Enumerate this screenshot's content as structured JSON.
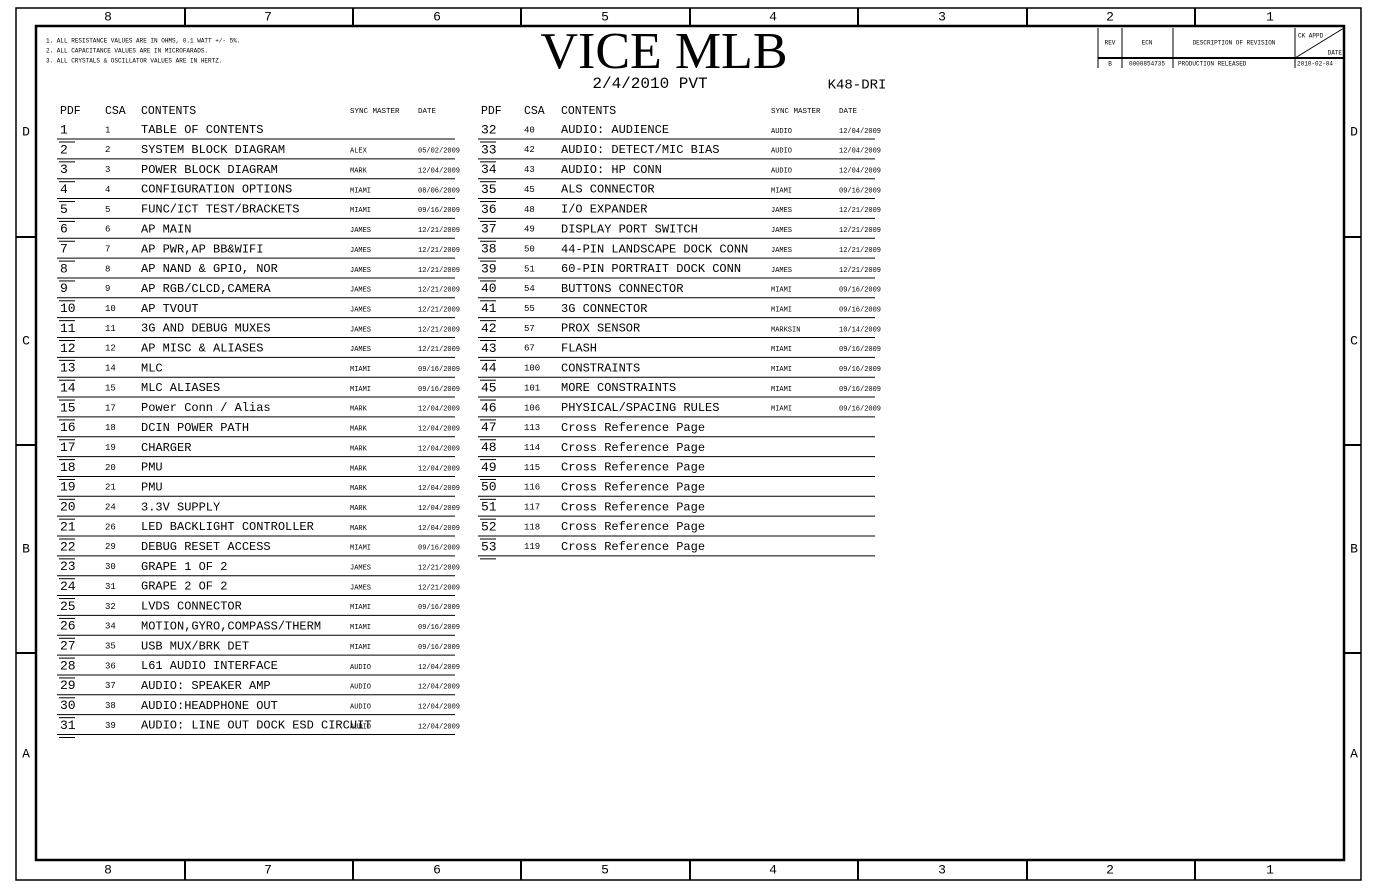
{
  "border": {
    "columns": [
      "8",
      "7",
      "6",
      "5",
      "4",
      "3",
      "2",
      "1"
    ],
    "rows": [
      "D",
      "C",
      "B",
      "A"
    ]
  },
  "notes": [
    "1. ALL RESISTANCE VALUES ARE IN OHMS, 0.1 WATT +/- 5%.",
    "2. ALL CAPACITANCE VALUES ARE IN MICROFARADS.",
    "3. ALL CRYSTALS & OSCILLATOR VALUES ARE IN HERTZ."
  ],
  "header": {
    "title": "VICE MLB",
    "subtitle": "2/4/2010 PVT",
    "board": "K48-DRI"
  },
  "revision": {
    "headers": [
      "REV",
      "ECN",
      "DESCRIPTION OF REVISION",
      "CK APPD",
      "DATE"
    ],
    "row": [
      "B",
      "0000854735",
      "PRODUCTION RELEASED",
      "2010-02-04"
    ]
  },
  "table": {
    "headers": [
      "PDF",
      "CSA",
      "CONTENTS",
      "SYNC MASTER",
      "DATE"
    ],
    "left": [
      {
        "pdf": "1",
        "csa": "1",
        "contents": "TABLE OF CONTENTS"
      },
      {
        "pdf": "2",
        "csa": "2",
        "contents": "SYSTEM BLOCK DIAGRAM",
        "sync": "ALEX",
        "date": "05/02/2009"
      },
      {
        "pdf": "3",
        "csa": "3",
        "contents": "POWER BLOCK DIAGRAM",
        "sync": "MARK",
        "date": "12/04/2009"
      },
      {
        "pdf": "4",
        "csa": "4",
        "contents": "CONFIGURATION OPTIONS",
        "sync": "MIAMI",
        "date": "08/06/2009"
      },
      {
        "pdf": "5",
        "csa": "5",
        "contents": "FUNC/ICT TEST/BRACKETS",
        "sync": "MIAMI",
        "date": "09/16/2009"
      },
      {
        "pdf": "6",
        "csa": "6",
        "contents": "AP MAIN",
        "sync": "JAMES",
        "date": "12/21/2009"
      },
      {
        "pdf": "7",
        "csa": "7",
        "contents": "AP PWR,AP BB&WIFI",
        "sync": "JAMES",
        "date": "12/21/2009"
      },
      {
        "pdf": "8",
        "csa": "8",
        "contents": "AP NAND & GPIO, NOR",
        "sync": "JAMES",
        "date": "12/21/2009"
      },
      {
        "pdf": "9",
        "csa": "9",
        "contents": "AP RGB/CLCD,CAMERA",
        "sync": "JAMES",
        "date": "12/21/2009"
      },
      {
        "pdf": "10",
        "csa": "10",
        "contents": "AP TVOUT",
        "sync": "JAMES",
        "date": "12/21/2009"
      },
      {
        "pdf": "11",
        "csa": "11",
        "contents": "3G AND DEBUG MUXES",
        "sync": "JAMES",
        "date": "12/21/2009"
      },
      {
        "pdf": "12",
        "csa": "12",
        "contents": "AP MISC & ALIASES",
        "sync": "JAMES",
        "date": "12/21/2009"
      },
      {
        "pdf": "13",
        "csa": "14",
        "contents": "MLC",
        "sync": "MIAMI",
        "date": "09/16/2009"
      },
      {
        "pdf": "14",
        "csa": "15",
        "contents": "MLC ALIASES",
        "sync": "MIAMI",
        "date": "09/16/2009"
      },
      {
        "pdf": "15",
        "csa": "17",
        "contents": "Power Conn / Alias",
        "sync": "MARK",
        "date": "12/04/2009"
      },
      {
        "pdf": "16",
        "csa": "18",
        "contents": "DCIN POWER PATH",
        "sync": "MARK",
        "date": "12/04/2009"
      },
      {
        "pdf": "17",
        "csa": "19",
        "contents": "CHARGER",
        "sync": "MARK",
        "date": "12/04/2009"
      },
      {
        "pdf": "18",
        "csa": "20",
        "contents": "PMU",
        "sync": "MARK",
        "date": "12/04/2009"
      },
      {
        "pdf": "19",
        "csa": "21",
        "contents": "PMU",
        "sync": "MARK",
        "date": "12/04/2009"
      },
      {
        "pdf": "20",
        "csa": "24",
        "contents": "3.3V SUPPLY",
        "sync": "MARK",
        "date": "12/04/2009"
      },
      {
        "pdf": "21",
        "csa": "26",
        "contents": "LED BACKLIGHT CONTROLLER",
        "sync": "MARK",
        "date": "12/04/2009"
      },
      {
        "pdf": "22",
        "csa": "29",
        "contents": "DEBUG RESET ACCESS",
        "sync": "MIAMI",
        "date": "09/16/2009"
      },
      {
        "pdf": "23",
        "csa": "30",
        "contents": "GRAPE 1 OF 2",
        "sync": "JAMES",
        "date": "12/21/2009"
      },
      {
        "pdf": "24",
        "csa": "31",
        "contents": "GRAPE 2 OF 2",
        "sync": "JAMES",
        "date": "12/21/2009"
      },
      {
        "pdf": "25",
        "csa": "32",
        "contents": "LVDS CONNECTOR",
        "sync": "MIAMI",
        "date": "09/16/2009"
      },
      {
        "pdf": "26",
        "csa": "34",
        "contents": "MOTION,GYRO,COMPASS/THERM",
        "sync": "MIAMI",
        "date": "09/16/2009"
      },
      {
        "pdf": "27",
        "csa": "35",
        "contents": "USB MUX/BRK DET",
        "sync": "MIAMI",
        "date": "09/16/2009"
      },
      {
        "pdf": "28",
        "csa": "36",
        "contents": "L61 AUDIO INTERFACE",
        "sync": "AUDIO",
        "date": "12/04/2009"
      },
      {
        "pdf": "29",
        "csa": "37",
        "contents": "AUDIO: SPEAKER AMP",
        "sync": "AUDIO",
        "date": "12/04/2009"
      },
      {
        "pdf": "30",
        "csa": "38",
        "contents": "AUDIO:HEADPHONE OUT",
        "sync": "AUDIO",
        "date": "12/04/2009"
      },
      {
        "pdf": "31",
        "csa": "39",
        "contents": "AUDIO: LINE OUT DOCK ESD CIRCUIT",
        "sync": "AUDIO",
        "date": "12/04/2009"
      }
    ],
    "right": [
      {
        "pdf": "32",
        "csa": "40",
        "contents": "AUDIO: AUDIENCE",
        "sync": "AUDIO",
        "date": "12/04/2009"
      },
      {
        "pdf": "33",
        "csa": "42",
        "contents": "AUDIO: DETECT/MIC BIAS",
        "sync": "AUDIO",
        "date": "12/04/2009"
      },
      {
        "pdf": "34",
        "csa": "43",
        "contents": "AUDIO: HP CONN",
        "sync": "AUDIO",
        "date": "12/04/2009"
      },
      {
        "pdf": "35",
        "csa": "45",
        "contents": "ALS CONNECTOR",
        "sync": "MIAMI",
        "date": "09/16/2009"
      },
      {
        "pdf": "36",
        "csa": "48",
        "contents": "I/O EXPANDER",
        "sync": "JAMES",
        "date": "12/21/2009"
      },
      {
        "pdf": "37",
        "csa": "49",
        "contents": "DISPLAY PORT SWITCH",
        "sync": "JAMES",
        "date": "12/21/2009"
      },
      {
        "pdf": "38",
        "csa": "50",
        "contents": "44-PIN LANDSCAPE DOCK CONN",
        "sync": "JAMES",
        "date": "12/21/2009"
      },
      {
        "pdf": "39",
        "csa": "51",
        "contents": "60-PIN PORTRAIT DOCK CONN",
        "sync": "JAMES",
        "date": "12/21/2009"
      },
      {
        "pdf": "40",
        "csa": "54",
        "contents": "BUTTONS CONNECTOR",
        "sync": "MIAMI",
        "date": "09/16/2009"
      },
      {
        "pdf": "41",
        "csa": "55",
        "contents": "3G CONNECTOR",
        "sync": "MIAMI",
        "date": "09/16/2009"
      },
      {
        "pdf": "42",
        "csa": "57",
        "contents": "PROX SENSOR",
        "sync": "MARKSIN",
        "date": "10/14/2009"
      },
      {
        "pdf": "43",
        "csa": "67",
        "contents": "FLASH",
        "sync": "MIAMI",
        "date": "09/16/2009"
      },
      {
        "pdf": "44",
        "csa": "100",
        "contents": "CONSTRAINTS",
        "sync": "MIAMI",
        "date": "09/16/2009"
      },
      {
        "pdf": "45",
        "csa": "101",
        "contents": "MORE CONSTRAINTS",
        "sync": "MIAMI",
        "date": "09/16/2009"
      },
      {
        "pdf": "46",
        "csa": "106",
        "contents": "PHYSICAL/SPACING RULES",
        "sync": "MIAMI",
        "date": "09/16/2009"
      },
      {
        "pdf": "47",
        "csa": "113",
        "contents": "Cross Reference Page"
      },
      {
        "pdf": "48",
        "csa": "114",
        "contents": "Cross Reference Page"
      },
      {
        "pdf": "49",
        "csa": "115",
        "contents": "Cross Reference Page"
      },
      {
        "pdf": "50",
        "csa": "116",
        "contents": "Cross Reference Page"
      },
      {
        "pdf": "51",
        "csa": "117",
        "contents": "Cross Reference Page"
      },
      {
        "pdf": "52",
        "csa": "118",
        "contents": "Cross Reference Page"
      },
      {
        "pdf": "53",
        "csa": "119",
        "contents": "Cross Reference Page"
      }
    ]
  }
}
